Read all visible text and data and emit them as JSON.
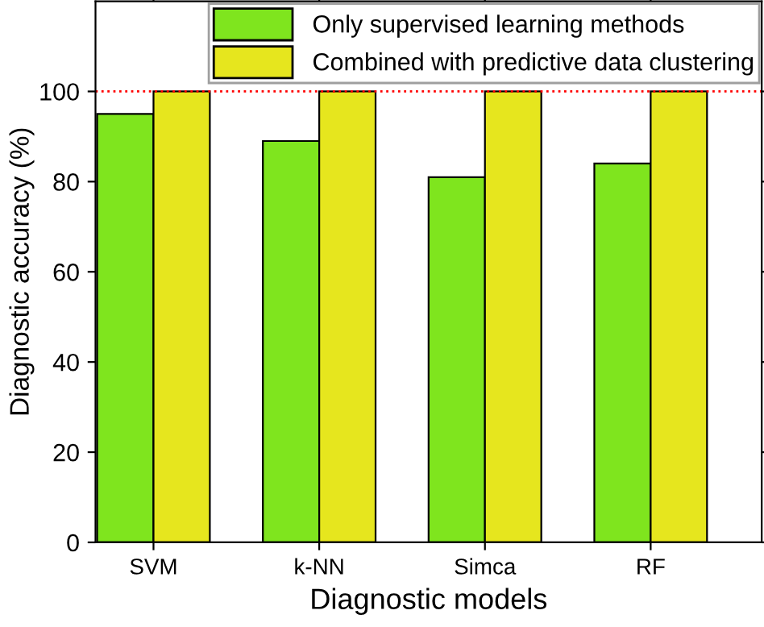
{
  "chart_data": {
    "type": "bar",
    "xlabel": "Diagnostic models",
    "ylabel": "Diagnostic accuracy (%)",
    "categories": [
      "SVM",
      "k-NN",
      "Simca",
      "RF"
    ],
    "series": [
      {
        "name": "Only supervised learning methods",
        "color": "#7fe51e",
        "values": [
          95,
          89,
          81,
          84
        ]
      },
      {
        "name": "Combined with predictive data clustering",
        "color": "#e6e61e",
        "values": [
          100,
          100,
          100,
          100
        ]
      }
    ],
    "ylim": [
      0,
      120
    ],
    "yticks": [
      0,
      20,
      40,
      60,
      80,
      100
    ],
    "grid": false,
    "legend": "top right",
    "ref_lines": [
      {
        "axis": "y",
        "value": 100,
        "color": "#ff0000",
        "line_style": "dotted"
      }
    ]
  }
}
